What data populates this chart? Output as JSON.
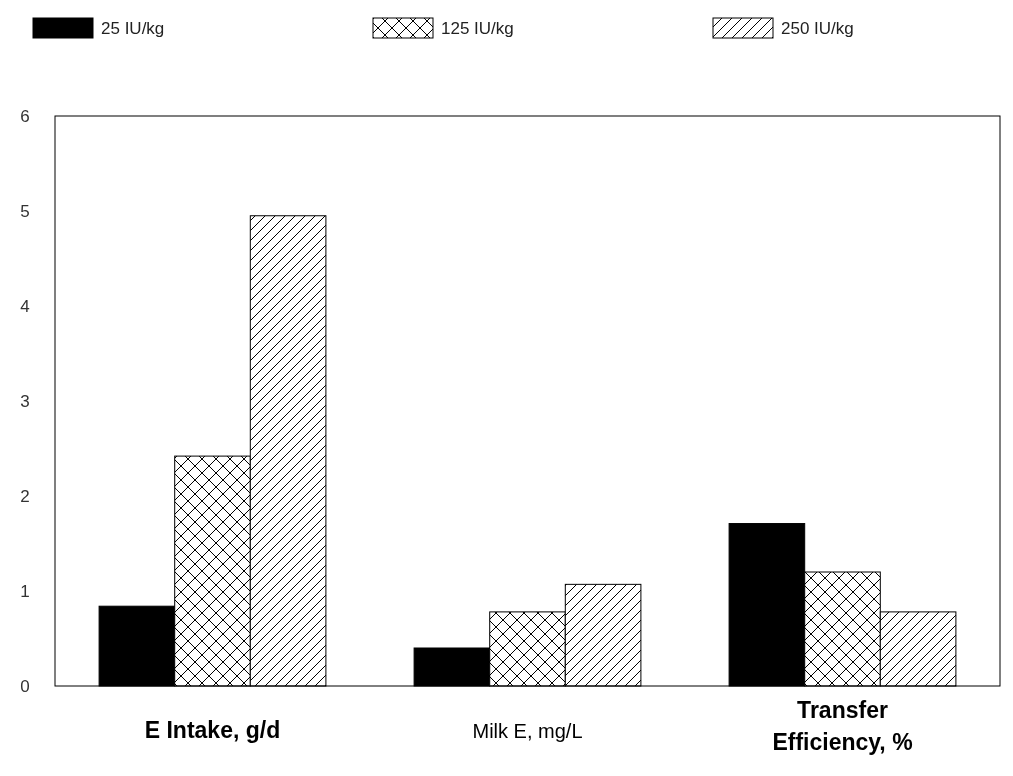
{
  "chart_data": {
    "type": "bar",
    "categories": [
      "E Intake, g/d",
      "Milk E, mg/L",
      "Transfer Efficiency, %"
    ],
    "series": [
      {
        "name": "25 IU/kg",
        "color": "#000000",
        "values": [
          0.84,
          0.4,
          1.71
        ]
      },
      {
        "name": "125 IU/kg",
        "color": "#000000",
        "values": [
          2.42,
          0.78,
          1.2
        ]
      },
      {
        "name": "250 IU/kg",
        "color": "#000000",
        "values": [
          4.95,
          1.07,
          0.78
        ]
      }
    ],
    "ylim": [
      0,
      6
    ],
    "yticks": [
      0,
      1,
      2,
      3,
      4,
      5,
      6
    ],
    "grid": false,
    "legend": "top"
  }
}
